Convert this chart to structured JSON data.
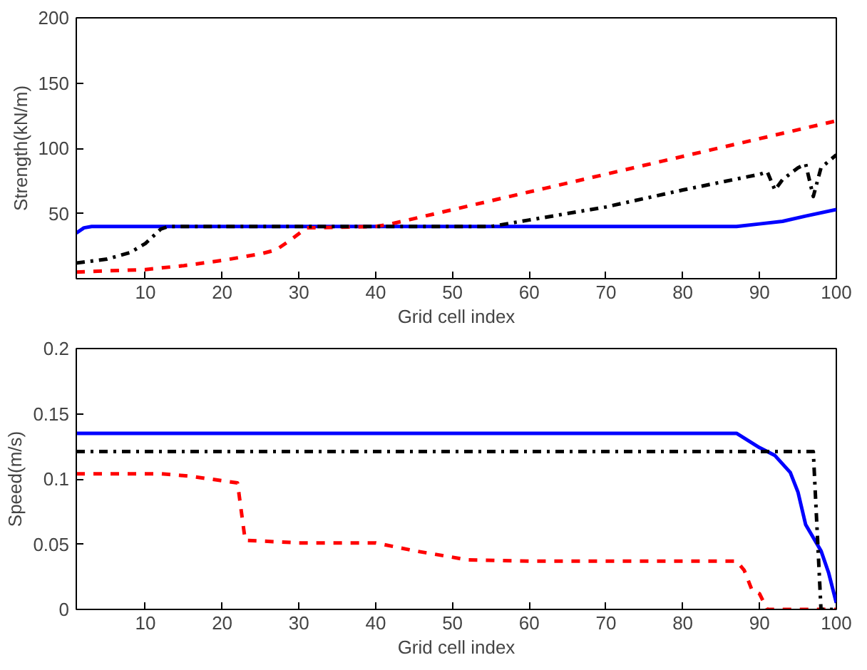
{
  "chart_data": [
    {
      "type": "line",
      "xlabel": "Grid cell index",
      "ylabel": "Strength(kN/m)",
      "xlim": [
        1,
        100
      ],
      "ylim": [
        0,
        200
      ],
      "xticks": [
        10,
        20,
        30,
        40,
        50,
        60,
        70,
        80,
        90,
        100
      ],
      "yticks": [
        50,
        100,
        150,
        200
      ],
      "series": [
        {
          "color": "#0000ff",
          "line_style": "solid",
          "x": [
            1,
            2,
            3,
            87,
            90,
            93,
            96,
            100
          ],
          "values": [
            35,
            39,
            40,
            40,
            42,
            44,
            48,
            53
          ]
        },
        {
          "color": "#ff0000",
          "line_style": "dashed",
          "x": [
            1,
            5,
            10,
            15,
            20,
            25,
            27,
            29,
            31,
            40,
            42,
            100
          ],
          "values": [
            5,
            6,
            7,
            10,
            14,
            19,
            22,
            30,
            39,
            40,
            42,
            121
          ]
        },
        {
          "color": "#000000",
          "line_style": "dashdot",
          "x": [
            1,
            5,
            8,
            10,
            12,
            13,
            55,
            60,
            70,
            80,
            90,
            91,
            92,
            93,
            95,
            96,
            97,
            98,
            100
          ],
          "values": [
            12,
            15,
            20,
            27,
            38,
            40,
            40,
            45,
            55,
            68,
            80,
            82,
            68,
            76,
            85,
            88,
            63,
            85,
            95
          ]
        }
      ]
    },
    {
      "type": "line",
      "xlabel": "Grid cell index",
      "ylabel": "Speed(m/s)",
      "xlim": [
        1,
        100
      ],
      "ylim": [
        0,
        0.2
      ],
      "xticks": [
        10,
        20,
        30,
        40,
        50,
        60,
        70,
        80,
        90,
        100
      ],
      "yticks": [
        0,
        0.05,
        0.1,
        0.15,
        0.2
      ],
      "series": [
        {
          "color": "#0000ff",
          "line_style": "solid",
          "x": [
            1,
            87,
            90,
            92,
            94,
            95,
            96,
            98,
            99,
            100
          ],
          "values": [
            0.135,
            0.135,
            0.124,
            0.118,
            0.105,
            0.09,
            0.065,
            0.045,
            0.028,
            0.005
          ]
        },
        {
          "color": "#ff0000",
          "line_style": "dashed",
          "x": [
            1,
            12,
            16,
            22,
            23,
            30,
            40,
            45,
            52,
            60,
            87,
            88,
            89,
            90,
            91,
            100
          ],
          "values": [
            0.104,
            0.104,
            0.102,
            0.097,
            0.053,
            0.051,
            0.051,
            0.045,
            0.038,
            0.037,
            0.037,
            0.03,
            0.015,
            0.012,
            0.0,
            0.0
          ]
        },
        {
          "color": "#000000",
          "line_style": "dashdot",
          "x": [
            1,
            97,
            98,
            100
          ],
          "values": [
            0.121,
            0.121,
            0.0,
            0.0
          ]
        }
      ]
    }
  ]
}
